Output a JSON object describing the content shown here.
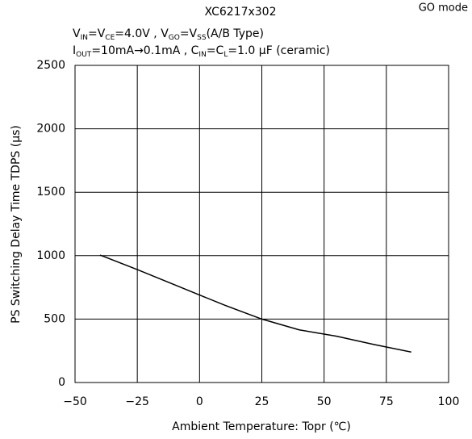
{
  "chart_data": {
    "type": "line",
    "title": "XC6217x302",
    "subtitle_lines": [
      [
        {
          "text": "V"
        },
        {
          "text": "IN",
          "sub": true
        },
        {
          "text": "=V"
        },
        {
          "text": "CE",
          "sub": true
        },
        {
          "text": "=4.0V , V"
        },
        {
          "text": "GO",
          "sub": true
        },
        {
          "text": "=V"
        },
        {
          "text": "SS",
          "sub": true
        },
        {
          "text": "(A/B Type)"
        }
      ],
      [
        {
          "text": "I"
        },
        {
          "text": "OUT",
          "sub": true
        },
        {
          "text": "=10mA→0.1mA , C"
        },
        {
          "text": "IN",
          "sub": true
        },
        {
          "text": "=C"
        },
        {
          "text": "L",
          "sub": true
        },
        {
          "text": "=1.0 μF (ceramic)"
        }
      ]
    ],
    "annotation": "GO mode",
    "x_label": "Ambient Temperature: Topr (℃)",
    "y_label": "PS Switching Delay Time TDPS (μs)",
    "x": [
      -40,
      -25,
      -10,
      0,
      10,
      25,
      40,
      55,
      70,
      85
    ],
    "series": [
      {
        "color": "#000000",
        "values": [
          1005,
          890,
          770,
          690,
          610,
          500,
          415,
          365,
          300,
          240
        ]
      }
    ],
    "xlim": [
      -50,
      100
    ],
    "xticks": [
      {
        "value": -50,
        "label": "−50"
      },
      {
        "value": -25,
        "label": "−25"
      },
      0,
      25,
      50,
      75,
      100
    ],
    "ylim": [
      0,
      2500
    ],
    "yticks": [
      0,
      500,
      1000,
      1500,
      2000,
      2500
    ],
    "grid": true
  }
}
